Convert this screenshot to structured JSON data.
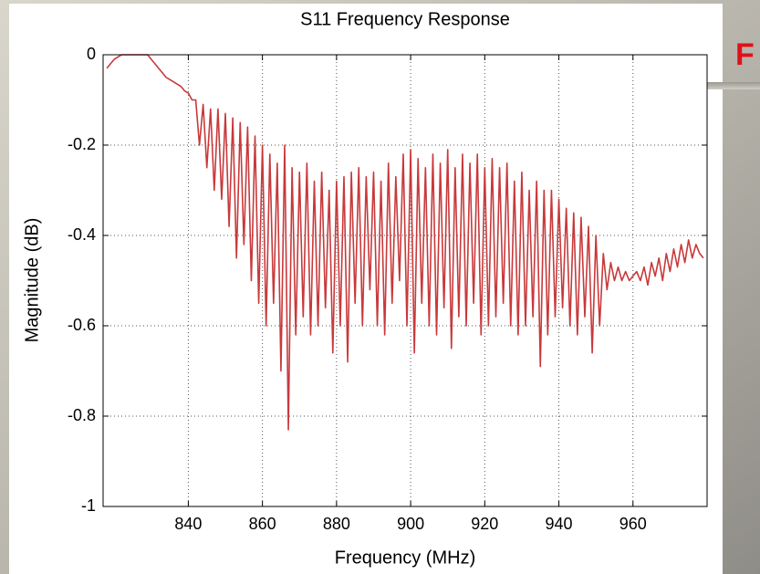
{
  "chart_data": {
    "type": "line",
    "title": "S11 Frequency Response",
    "xlabel": "Frequency (MHz)",
    "ylabel": "Magnitude (dB)",
    "annotation": "F",
    "color": "#c8393b",
    "grid": true,
    "xlim": [
      817,
      980
    ],
    "ylim": [
      -1,
      0
    ],
    "xticks": [
      840,
      860,
      880,
      900,
      920,
      940,
      960
    ],
    "yticks": [
      0,
      -0.2,
      -0.4,
      -0.6,
      -0.8,
      -1
    ],
    "x": [
      818,
      819,
      820,
      821,
      822,
      823,
      824,
      825,
      826,
      827,
      828,
      829,
      830,
      831,
      832,
      833,
      834,
      835,
      836,
      837,
      838,
      839,
      840,
      841,
      842,
      843,
      844,
      845,
      846,
      847,
      848,
      849,
      850,
      851,
      852,
      853,
      854,
      855,
      856,
      857,
      858,
      859,
      860,
      861,
      862,
      863,
      864,
      865,
      866,
      867,
      868,
      869,
      870,
      871,
      872,
      873,
      874,
      875,
      876,
      877,
      878,
      879,
      880,
      881,
      882,
      883,
      884,
      885,
      886,
      887,
      888,
      889,
      890,
      891,
      892,
      893,
      894,
      895,
      896,
      897,
      898,
      899,
      900,
      901,
      902,
      903,
      904,
      905,
      906,
      907,
      908,
      909,
      910,
      911,
      912,
      913,
      914,
      915,
      916,
      917,
      918,
      919,
      920,
      921,
      922,
      923,
      924,
      925,
      926,
      927,
      928,
      929,
      930,
      931,
      932,
      933,
      934,
      935,
      936,
      937,
      938,
      939,
      940,
      941,
      942,
      943,
      944,
      945,
      946,
      947,
      948,
      949,
      950,
      951,
      952,
      953,
      954,
      955,
      956,
      957,
      958,
      959,
      960,
      961,
      962,
      963,
      964,
      965,
      966,
      967,
      968,
      969,
      970,
      971,
      972,
      973,
      974,
      975,
      976,
      977,
      978,
      979
    ],
    "values": [
      -0.03,
      -0.02,
      -0.01,
      -0.005,
      0,
      0,
      0,
      0,
      0,
      0,
      0,
      0,
      -0.01,
      -0.02,
      -0.03,
      -0.04,
      -0.05,
      -0.055,
      -0.06,
      -0.065,
      -0.07,
      -0.08,
      -0.085,
      -0.1,
      -0.1,
      -0.2,
      -0.11,
      -0.25,
      -0.12,
      -0.3,
      -0.12,
      -0.32,
      -0.13,
      -0.38,
      -0.14,
      -0.45,
      -0.15,
      -0.42,
      -0.16,
      -0.5,
      -0.18,
      -0.55,
      -0.2,
      -0.6,
      -0.22,
      -0.55,
      -0.24,
      -0.7,
      -0.2,
      -0.83,
      -0.25,
      -0.62,
      -0.26,
      -0.58,
      -0.24,
      -0.62,
      -0.28,
      -0.6,
      -0.26,
      -0.56,
      -0.3,
      -0.66,
      -0.28,
      -0.6,
      -0.27,
      -0.68,
      -0.26,
      -0.55,
      -0.25,
      -0.6,
      -0.27,
      -0.52,
      -0.26,
      -0.6,
      -0.28,
      -0.62,
      -0.24,
      -0.55,
      -0.27,
      -0.5,
      -0.22,
      -0.6,
      -0.21,
      -0.66,
      -0.23,
      -0.55,
      -0.25,
      -0.6,
      -0.22,
      -0.62,
      -0.24,
      -0.56,
      -0.21,
      -0.65,
      -0.25,
      -0.58,
      -0.22,
      -0.6,
      -0.24,
      -0.55,
      -0.22,
      -0.62,
      -0.25,
      -0.6,
      -0.23,
      -0.58,
      -0.25,
      -0.55,
      -0.24,
      -0.6,
      -0.28,
      -0.62,
      -0.26,
      -0.6,
      -0.3,
      -0.58,
      -0.28,
      -0.69,
      -0.3,
      -0.62,
      -0.3,
      -0.58,
      -0.32,
      -0.56,
      -0.34,
      -0.6,
      -0.35,
      -0.62,
      -0.36,
      -0.58,
      -0.38,
      -0.66,
      -0.4,
      -0.6,
      -0.44,
      -0.52,
      -0.46,
      -0.5,
      -0.47,
      -0.5,
      -0.48,
      -0.5,
      -0.49,
      -0.48,
      -0.5,
      -0.47,
      -0.51,
      -0.46,
      -0.49,
      -0.45,
      -0.5,
      -0.44,
      -0.48,
      -0.43,
      -0.47,
      -0.42,
      -0.46,
      -0.41,
      -0.45,
      -0.42,
      -0.44,
      -0.45
    ]
  }
}
